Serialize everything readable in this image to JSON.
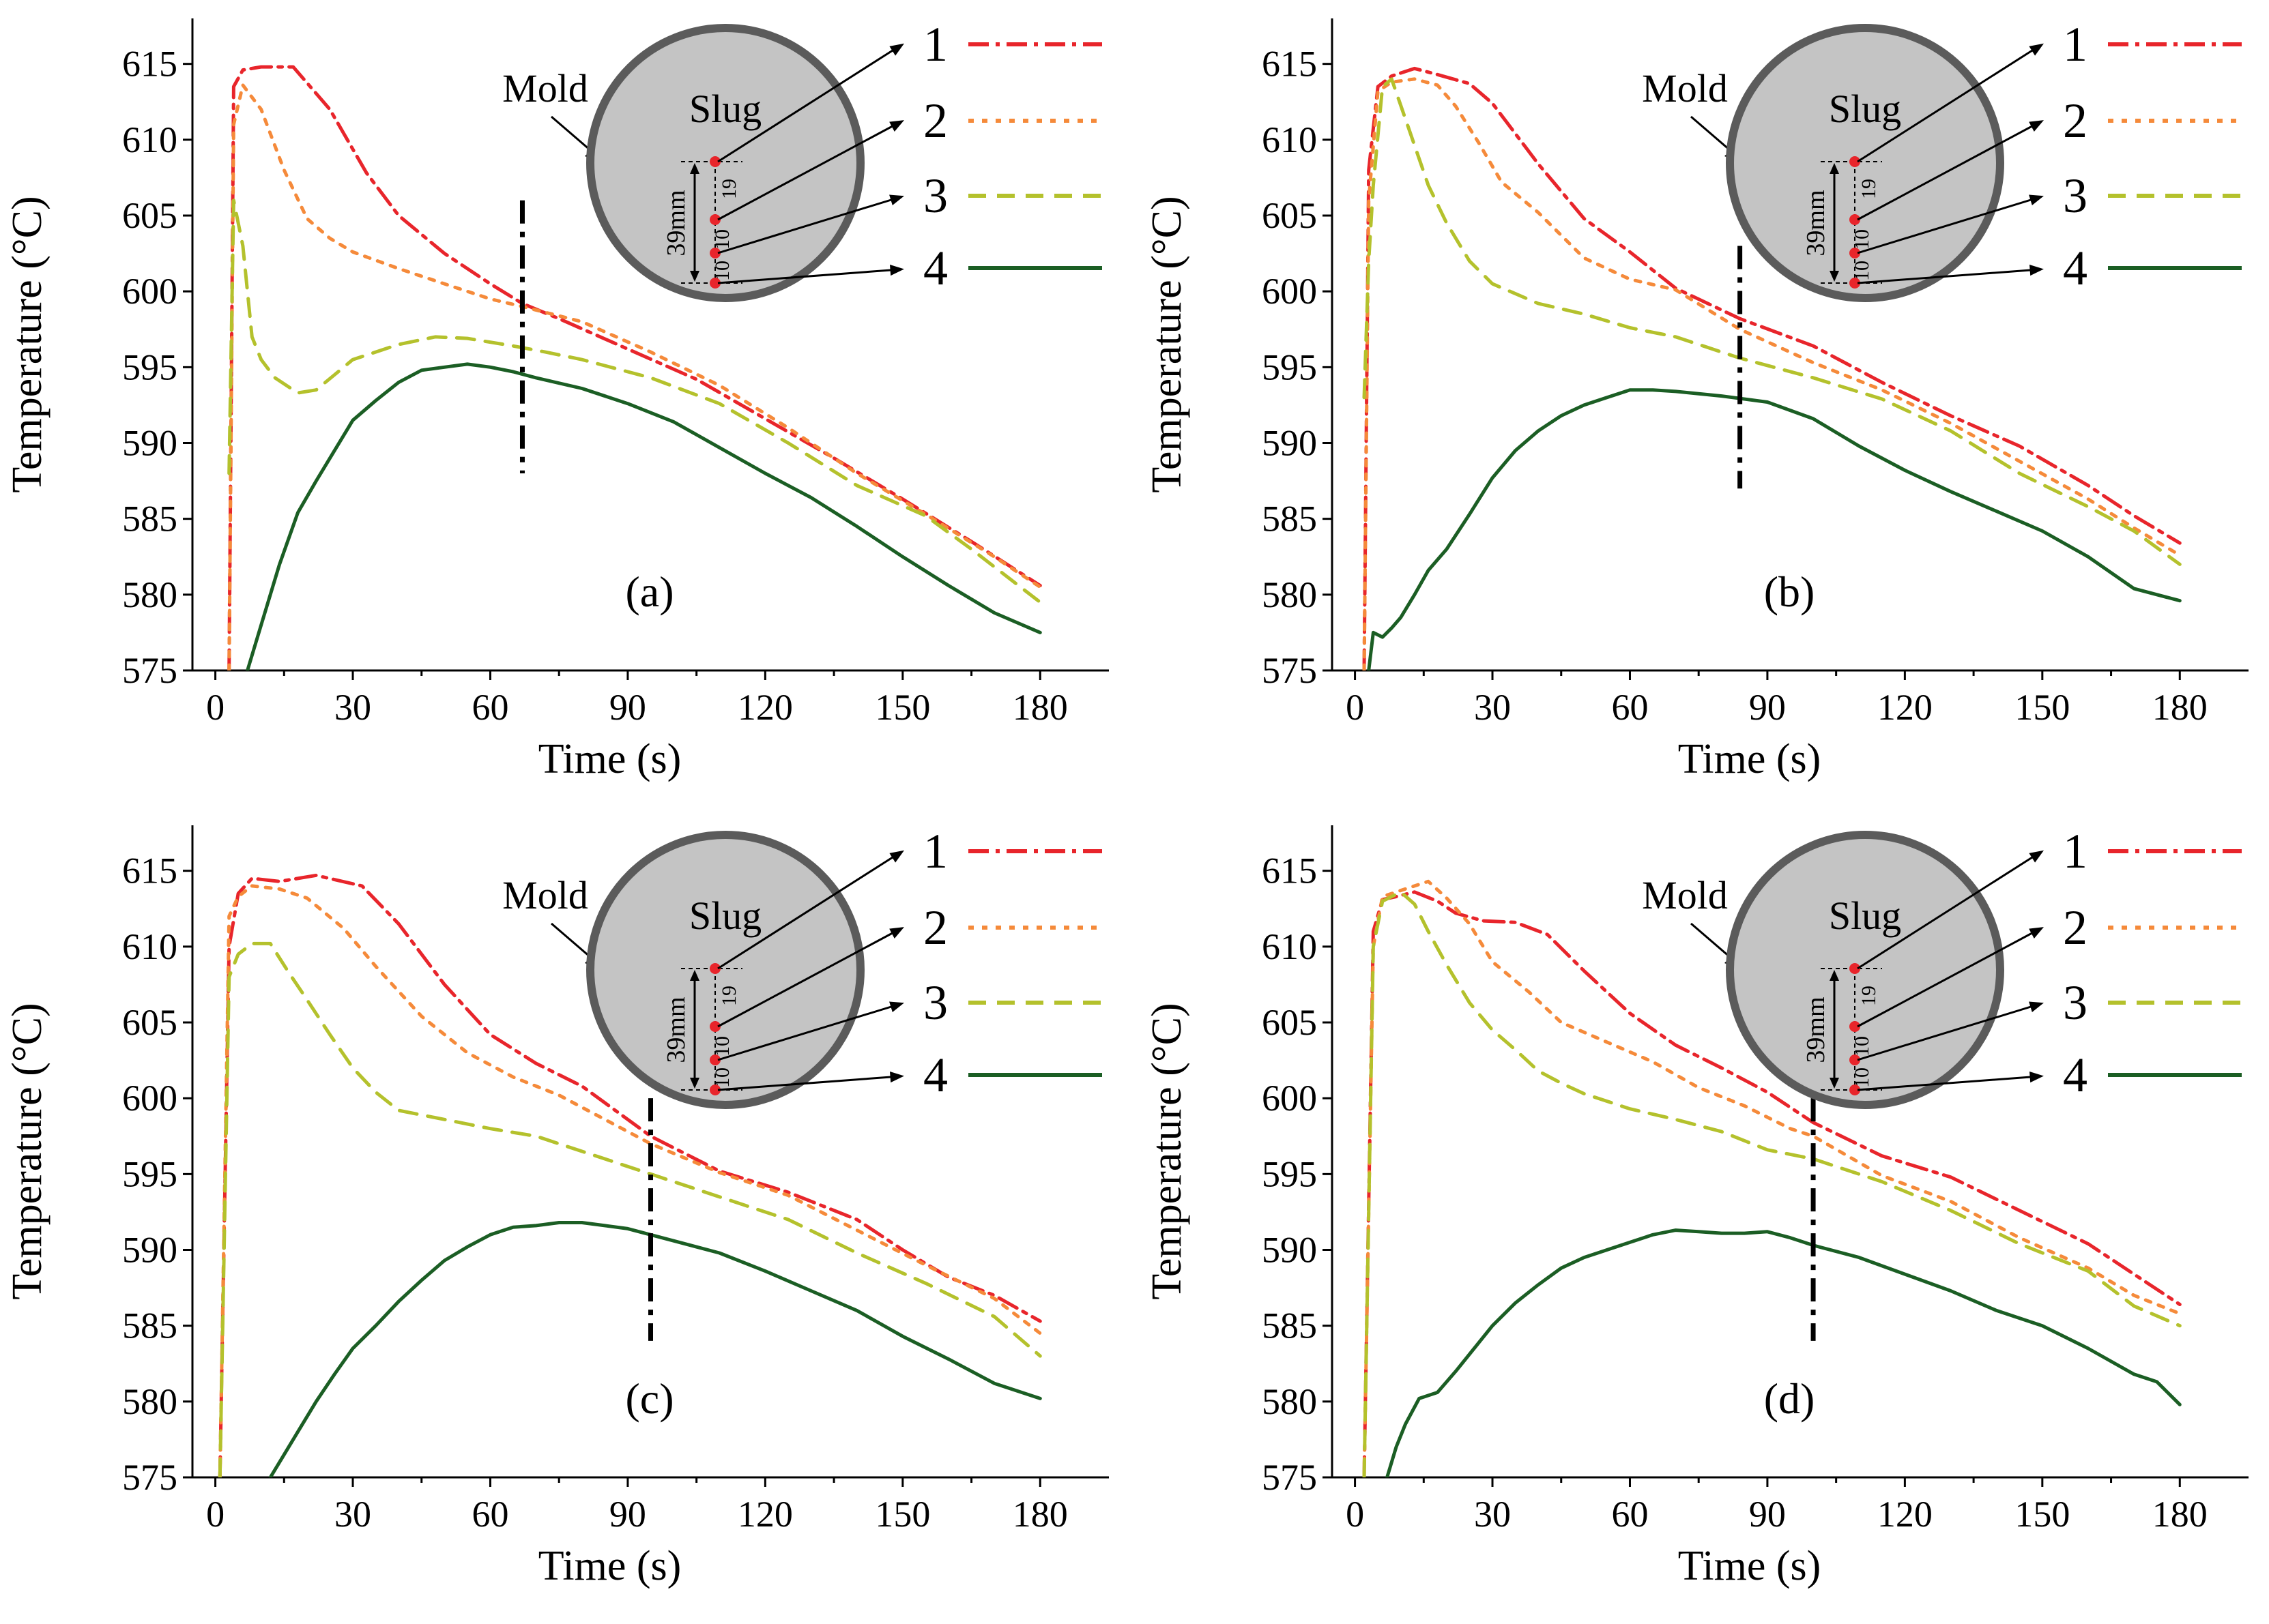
{
  "figure": {
    "colors": {
      "s1": "#e8252b",
      "s2": "#f58a3a",
      "s3": "#b4c12c",
      "s4": "#1b5e24",
      "slug_fill": "#c4c4c4",
      "slug_ring": "#5b5b5b",
      "marker": "#e8252b"
    },
    "inset": {
      "mold_label": "Mold",
      "slug_label": "Slug",
      "dim_total": "39mm",
      "dim_a": "10",
      "dim_b": "10",
      "dim_c": "19",
      "legend": [
        "1",
        "2",
        "3",
        "4"
      ]
    }
  },
  "chart_data": [
    {
      "panel_label": "(a)",
      "type": "line",
      "xlabel": "Time (s)",
      "ylabel": "Temperature (°C)",
      "xlim": [
        -5,
        195
      ],
      "ylim": [
        575,
        618
      ],
      "xticks": [
        0,
        30,
        60,
        90,
        120,
        150,
        180
      ],
      "yticks": [
        575,
        580,
        585,
        590,
        595,
        600,
        605,
        610,
        615
      ],
      "xtick_labels": [
        "0",
        "30",
        "60",
        "90",
        "120",
        "150",
        "180"
      ],
      "ytick_labels": [
        "575",
        "580",
        "585",
        "590",
        "595",
        "600",
        "605",
        "610",
        "615"
      ],
      "divider": {
        "x": 67,
        "y_range": [
          588,
          606
        ]
      },
      "series": [
        {
          "name": "1",
          "x": [
            3,
            4,
            6,
            10,
            17,
            25,
            33,
            40,
            50,
            60,
            67,
            75,
            90,
            105,
            120,
            135,
            150,
            165,
            180
          ],
          "y": [
            575,
            613.5,
            614.6,
            614.8,
            614.8,
            612,
            607.8,
            605,
            602.5,
            600.5,
            599.2,
            598.2,
            596.2,
            594.2,
            591.6,
            589,
            586.3,
            583.5,
            580.6
          ]
        },
        {
          "name": "2",
          "x": [
            3,
            4,
            6,
            10,
            15,
            20,
            25,
            30,
            40,
            50,
            60,
            67,
            80,
            95,
            110,
            125,
            140,
            155,
            170,
            180
          ],
          "y": [
            575,
            611,
            613.6,
            612,
            608,
            604.8,
            603.5,
            602.6,
            601.5,
            600.5,
            599.5,
            599,
            598,
            596,
            593.8,
            591,
            588,
            585.3,
            582.5,
            580.5
          ]
        },
        {
          "name": "3",
          "x": [
            3,
            4,
            6,
            8,
            10,
            13,
            18,
            22,
            26,
            30,
            40,
            48,
            55,
            65,
            72,
            80,
            95,
            110,
            125,
            140,
            155,
            165,
            180
          ],
          "y": [
            588,
            606,
            603,
            597,
            595.5,
            594.3,
            593.3,
            593.5,
            594.5,
            595.5,
            596.5,
            597,
            596.9,
            596.4,
            596,
            595.5,
            594.3,
            592.6,
            590,
            587.2,
            585.2,
            583,
            579.5
          ]
        },
        {
          "name": "4",
          "x": [
            7,
            10,
            14,
            18,
            22,
            26,
            30,
            35,
            40,
            45,
            50,
            55,
            60,
            65,
            70,
            80,
            90,
            100,
            110,
            120,
            130,
            140,
            150,
            160,
            170,
            180
          ],
          "y": [
            575,
            578,
            582,
            585.4,
            587.5,
            589.5,
            591.5,
            592.8,
            594,
            594.8,
            595,
            595.2,
            595,
            594.7,
            594.3,
            593.6,
            592.6,
            591.4,
            589.7,
            588,
            586.4,
            584.5,
            582.5,
            580.6,
            578.8,
            577.5
          ]
        }
      ]
    },
    {
      "panel_label": "(b)",
      "type": "line",
      "xlabel": "Time (s)",
      "ylabel": "Temperature (°C)",
      "xlim": [
        -5,
        195
      ],
      "ylim": [
        575,
        618
      ],
      "xticks": [
        0,
        30,
        60,
        90,
        120,
        150,
        180
      ],
      "yticks": [
        575,
        580,
        585,
        590,
        595,
        600,
        605,
        610,
        615
      ],
      "xtick_labels": [
        "0",
        "30",
        "60",
        "90",
        "120",
        "150",
        "180"
      ],
      "ytick_labels": [
        "575",
        "580",
        "585",
        "590",
        "595",
        "600",
        "605",
        "610",
        "615"
      ],
      "divider": {
        "x": 84,
        "y_range": [
          587,
          603
        ]
      },
      "series": [
        {
          "name": "1",
          "x": [
            2,
            3,
            5,
            8,
            13,
            18,
            25,
            30,
            40,
            50,
            60,
            70,
            84,
            100,
            115,
            130,
            145,
            160,
            170,
            180
          ],
          "y": [
            575,
            608,
            613.5,
            614.2,
            614.7,
            614.3,
            613.7,
            612.4,
            608.4,
            604.8,
            602.6,
            600.2,
            598.2,
            596.4,
            594,
            591.8,
            589.8,
            587.2,
            585.2,
            583.4
          ]
        },
        {
          "name": "2",
          "x": [
            2,
            3,
            5,
            8,
            13,
            18,
            22,
            27,
            32,
            40,
            50,
            60,
            70,
            84,
            100,
            115,
            130,
            145,
            160,
            170,
            180
          ],
          "y": [
            575,
            606,
            613.2,
            613.8,
            614,
            613.6,
            612.2,
            609.8,
            607.2,
            605.2,
            602.2,
            600.8,
            600.1,
            597.5,
            595.3,
            593.5,
            591.3,
            588.8,
            586.3,
            584.4,
            582.6
          ]
        },
        {
          "name": "3",
          "x": [
            2,
            3,
            4,
            6,
            8,
            12,
            16,
            20,
            25,
            30,
            40,
            50,
            60,
            70,
            84,
            100,
            115,
            130,
            145,
            160,
            170,
            180
          ],
          "y": [
            593,
            602,
            607,
            613.5,
            614,
            610.5,
            607,
            604.5,
            602,
            600.5,
            599.2,
            598.5,
            597.6,
            597,
            595.6,
            594.3,
            592.9,
            590.8,
            588,
            585.8,
            584.2,
            582
          ]
        },
        {
          "name": "4",
          "x": [
            3,
            4,
            6,
            8,
            10,
            13,
            16,
            20,
            25,
            30,
            35,
            40,
            45,
            50,
            55,
            60,
            65,
            70,
            80,
            90,
            100,
            110,
            120,
            130,
            140,
            150,
            160,
            170,
            180
          ],
          "y": [
            575,
            577.5,
            577.2,
            577.8,
            578.5,
            580,
            581.6,
            583,
            585.3,
            587.7,
            589.5,
            590.8,
            591.8,
            592.5,
            593,
            593.5,
            593.5,
            593.4,
            593.1,
            592.7,
            591.6,
            589.8,
            588.2,
            586.8,
            585.5,
            584.2,
            582.5,
            580.4,
            579.6
          ]
        }
      ]
    },
    {
      "panel_label": "(c)",
      "type": "line",
      "xlabel": "Time (s)",
      "ylabel": "Temperature (°C)",
      "xlim": [
        -5,
        195
      ],
      "ylim": [
        575,
        618
      ],
      "xticks": [
        0,
        30,
        60,
        90,
        120,
        150,
        180
      ],
      "yticks": [
        575,
        580,
        585,
        590,
        595,
        600,
        605,
        610,
        615
      ],
      "xtick_labels": [
        "0",
        "30",
        "60",
        "90",
        "120",
        "150",
        "180"
      ],
      "ytick_labels": [
        "575",
        "580",
        "585",
        "590",
        "595",
        "600",
        "605",
        "610",
        "615"
      ],
      "divider": {
        "x": 95,
        "y_range": [
          584,
          600
        ]
      },
      "series": [
        {
          "name": "1",
          "x": [
            1,
            3,
            5,
            8,
            14,
            22,
            32,
            40,
            50,
            60,
            70,
            80,
            95,
            110,
            125,
            140,
            150,
            160,
            170,
            180
          ],
          "y": [
            575,
            610,
            613.5,
            614.5,
            614.3,
            614.7,
            614,
            611.5,
            607.5,
            604.2,
            602.3,
            600.8,
            597.5,
            595.2,
            593.8,
            592,
            590,
            588.2,
            587,
            585.3
          ]
        },
        {
          "name": "2",
          "x": [
            1,
            3,
            5,
            8,
            14,
            20,
            28,
            35,
            45,
            55,
            65,
            75,
            85,
            95,
            110,
            125,
            140,
            155,
            170,
            180
          ],
          "y": [
            575,
            612,
            613.3,
            614,
            613.8,
            613.2,
            611.2,
            608.7,
            605.4,
            603,
            601.4,
            600.2,
            598.6,
            597,
            595.1,
            593.6,
            591.3,
            589,
            586.8,
            584.5
          ]
        },
        {
          "name": "3",
          "x": [
            1,
            3,
            5,
            8,
            12,
            16,
            20,
            25,
            30,
            35,
            40,
            50,
            60,
            70,
            80,
            95,
            110,
            125,
            140,
            155,
            170,
            180
          ],
          "y": [
            575,
            608,
            609.5,
            610.2,
            610.2,
            608.3,
            606.5,
            604.2,
            602,
            600.4,
            599.2,
            598.6,
            598,
            597.5,
            596.5,
            595,
            593.5,
            592,
            589.8,
            587.8,
            585.6,
            583
          ]
        },
        {
          "name": "4",
          "x": [
            12,
            15,
            18,
            22,
            26,
            30,
            35,
            40,
            45,
            50,
            55,
            60,
            65,
            70,
            75,
            80,
            85,
            90,
            95,
            100,
            110,
            120,
            130,
            140,
            150,
            160,
            170,
            180
          ],
          "y": [
            575,
            576.5,
            578,
            580,
            581.8,
            583.5,
            585,
            586.6,
            588,
            589.3,
            590.2,
            591,
            591.5,
            591.6,
            591.8,
            591.8,
            591.6,
            591.4,
            591,
            590.6,
            589.8,
            588.6,
            587.3,
            586,
            584.3,
            582.8,
            581.2,
            580.2
          ]
        }
      ]
    },
    {
      "panel_label": "(d)",
      "type": "line",
      "xlabel": "Time (s)",
      "ylabel": "Temperature (°C)",
      "xlim": [
        -5,
        195
      ],
      "ylim": [
        575,
        618
      ],
      "xticks": [
        0,
        30,
        60,
        90,
        120,
        150,
        180
      ],
      "yticks": [
        575,
        580,
        585,
        590,
        595,
        600,
        605,
        610,
        615
      ],
      "xtick_labels": [
        "0",
        "30",
        "60",
        "90",
        "120",
        "150",
        "180"
      ],
      "ytick_labels": [
        "575",
        "580",
        "585",
        "590",
        "595",
        "600",
        "605",
        "610",
        "615"
      ],
      "divider": {
        "x": 100,
        "y_range": [
          584,
          600
        ]
      },
      "series": [
        {
          "name": "1",
          "x": [
            2,
            4,
            6,
            9,
            13,
            18,
            22,
            28,
            35,
            42,
            50,
            60,
            70,
            80,
            90,
            100,
            115,
            130,
            145,
            160,
            170,
            180
          ],
          "y": [
            575,
            611,
            613.1,
            613.3,
            613.6,
            613,
            612.2,
            611.7,
            611.6,
            610.8,
            608.4,
            605.6,
            603.5,
            602,
            600.4,
            598.4,
            596.2,
            594.8,
            592.6,
            590.4,
            588.4,
            586.4
          ]
        },
        {
          "name": "2",
          "x": [
            2,
            4,
            6,
            9,
            13,
            16,
            20,
            25,
            30,
            38,
            45,
            55,
            65,
            75,
            85,
            95,
            100,
            115,
            130,
            145,
            160,
            170,
            180
          ],
          "y": [
            575,
            610,
            613.3,
            613.6,
            614,
            614.3,
            613.2,
            611.5,
            609,
            607,
            605,
            603.7,
            602.4,
            600.7,
            599.5,
            598,
            597.5,
            594.9,
            593.2,
            590.8,
            588.8,
            587,
            585.8
          ]
        },
        {
          "name": "3",
          "x": [
            2,
            4,
            6,
            8,
            10,
            13,
            16,
            20,
            25,
            30,
            35,
            40,
            45,
            50,
            60,
            70,
            80,
            90,
            100,
            115,
            130,
            145,
            160,
            170,
            180
          ],
          "y": [
            575,
            610,
            613,
            613.3,
            613.6,
            612.8,
            611,
            608.8,
            606.3,
            604.5,
            603.2,
            601.8,
            601,
            600.3,
            599.3,
            598.6,
            597.8,
            596.6,
            596,
            594.5,
            592.6,
            590.4,
            588.6,
            586.3,
            585
          ]
        },
        {
          "name": "4",
          "x": [
            7,
            9,
            11,
            14,
            18,
            22,
            26,
            30,
            35,
            40,
            45,
            50,
            55,
            60,
            65,
            70,
            75,
            80,
            85,
            90,
            95,
            100,
            110,
            120,
            130,
            140,
            150,
            160,
            170,
            175,
            180
          ],
          "y": [
            575,
            577,
            578.5,
            580.2,
            580.6,
            582,
            583.5,
            585,
            586.5,
            587.7,
            588.8,
            589.5,
            590,
            590.5,
            591,
            591.3,
            591.2,
            591.1,
            591.1,
            591.2,
            590.8,
            590.3,
            589.5,
            588.4,
            587.3,
            586,
            585,
            583.5,
            581.8,
            581.3,
            579.8
          ]
        }
      ]
    }
  ]
}
